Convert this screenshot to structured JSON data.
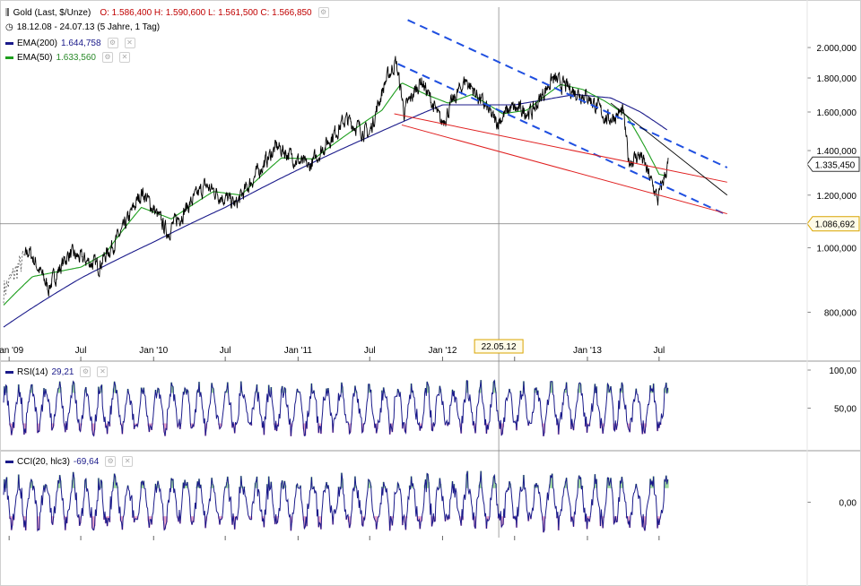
{
  "header": {
    "symbol": "Gold (Last, $/Unze)",
    "ohlc": "O: 1.586,400  H: 1.590,600  L: 1.561,500  C: 1.566,850",
    "range": "18.12.08 - 24.07.13 (5 Jahre, 1 Tag)",
    "ema200_label": "EMA(200)",
    "ema200_value": "1.644,758",
    "ema50_label": "EMA(50)",
    "ema50_value": "1.633,560"
  },
  "colors": {
    "price": "#000000",
    "ema200": "#1a1a8a",
    "ema50": "#1e9e1e",
    "channel": "#1f4fe0",
    "support": "#e02020",
    "trend": "#000000",
    "grid": "#b0b0b0",
    "rsi": "#1a1a8a",
    "overbought": "#9fd99f",
    "oversold": "#e7a0c8"
  },
  "chart_data": [
    {
      "type": "line",
      "name": "price",
      "scale": "log",
      "ylim": [
        730,
        2300
      ],
      "yticks": [
        "2.000,000",
        "1.800,000",
        "1.600,000",
        "1.400,000",
        "1.200,000",
        "1.000,000",
        "800,000"
      ],
      "ytick_values": [
        2000,
        1800,
        1600,
        1400,
        1200,
        1000,
        800
      ],
      "xticks": [
        "Jan '09",
        "Jul",
        "Jan '10",
        "Jul",
        "Jan '11",
        "Jul",
        "Jan '12",
        "Jul",
        "Jan '13",
        "Jul"
      ],
      "xtick_dates": [
        "2009-01-01",
        "2009-07-01",
        "2010-01-01",
        "2010-07-01",
        "2011-01-01",
        "2011-07-01",
        "2012-01-01",
        "2012-07-01",
        "2013-01-01",
        "2013-07-01"
      ],
      "xlim": [
        "2008-12-18",
        "2013-07-24"
      ],
      "price_series": [
        [
          "2008-12-18",
          860
        ],
        [
          "2009-02-20",
          990
        ],
        [
          "2009-04-10",
          870
        ],
        [
          "2009-06-01",
          980
        ],
        [
          "2009-08-15",
          940
        ],
        [
          "2009-10-15",
          1060
        ],
        [
          "2009-12-03",
          1215
        ],
        [
          "2010-02-05",
          1055
        ],
        [
          "2010-05-12",
          1240
        ],
        [
          "2010-07-28",
          1160
        ],
        [
          "2010-11-08",
          1420
        ],
        [
          "2011-01-28",
          1320
        ],
        [
          "2011-05-01",
          1560
        ],
        [
          "2011-06-30",
          1480
        ],
        [
          "2011-08-10",
          1780
        ],
        [
          "2011-09-05",
          1905
        ],
        [
          "2011-09-26",
          1600
        ],
        [
          "2011-11-08",
          1790
        ],
        [
          "2011-12-29",
          1535
        ],
        [
          "2012-02-28",
          1790
        ],
        [
          "2012-05-16",
          1540
        ],
        [
          "2012-06-20",
          1620
        ],
        [
          "2012-08-15",
          1600
        ],
        [
          "2012-10-04",
          1795
        ],
        [
          "2012-11-20",
          1730
        ],
        [
          "2013-01-02",
          1690
        ],
        [
          "2013-02-20",
          1560
        ],
        [
          "2013-04-01",
          1600
        ],
        [
          "2013-04-15",
          1350
        ],
        [
          "2013-05-15",
          1380
        ],
        [
          "2013-06-28",
          1180
        ],
        [
          "2013-07-24",
          1335
        ]
      ],
      "ema200_series": [
        [
          "2008-12-18",
          760
        ],
        [
          "2009-07-01",
          900
        ],
        [
          "2010-01-01",
          1020
        ],
        [
          "2010-07-01",
          1150
        ],
        [
          "2011-01-01",
          1310
        ],
        [
          "2011-07-01",
          1470
        ],
        [
          "2011-09-15",
          1540
        ],
        [
          "2012-01-01",
          1640
        ],
        [
          "2012-07-01",
          1640
        ],
        [
          "2012-12-01",
          1700
        ],
        [
          "2013-03-01",
          1680
        ],
        [
          "2013-05-15",
          1600
        ],
        [
          "2013-07-24",
          1500
        ]
      ],
      "ema50_series": [
        [
          "2008-12-18",
          820
        ],
        [
          "2009-03-01",
          905
        ],
        [
          "2009-05-01",
          920
        ],
        [
          "2009-07-01",
          935
        ],
        [
          "2009-09-01",
          980
        ],
        [
          "2009-12-01",
          1150
        ],
        [
          "2010-02-15",
          1105
        ],
        [
          "2010-06-01",
          1215
        ],
        [
          "2010-08-10",
          1200
        ],
        [
          "2010-11-20",
          1365
        ],
        [
          "2011-02-10",
          1360
        ],
        [
          "2011-06-01",
          1520
        ],
        [
          "2011-08-01",
          1610
        ],
        [
          "2011-09-20",
          1770
        ],
        [
          "2011-11-20",
          1700
        ],
        [
          "2012-01-15",
          1650
        ],
        [
          "2012-03-15",
          1700
        ],
        [
          "2012-06-01",
          1590
        ],
        [
          "2012-08-01",
          1610
        ],
        [
          "2012-10-25",
          1760
        ],
        [
          "2012-12-20",
          1730
        ],
        [
          "2013-02-15",
          1660
        ],
        [
          "2013-04-10",
          1580
        ],
        [
          "2013-05-20",
          1440
        ],
        [
          "2013-07-01",
          1290
        ],
        [
          "2013-07-24",
          1280
        ]
      ],
      "price_label": "1.335,450",
      "hline_label": "1.086,692",
      "hline_value": 1086.692,
      "crosshair_date": "22.05.12",
      "crosshair_iso": "2012-05-22"
    },
    {
      "type": "line",
      "name": "RSI",
      "label": "RSI(14)",
      "value": "29,21",
      "ylim": [
        0,
        100
      ],
      "yticks": [
        "100,00",
        "50,00"
      ],
      "ytick_values": [
        100,
        50
      ]
    },
    {
      "type": "line",
      "name": "CCI",
      "label": "CCI(20, hlc3)",
      "value": "-69,64",
      "ylim": [
        -300,
        300
      ],
      "yticks": [
        "0,00"
      ],
      "ytick_values": [
        0
      ]
    }
  ]
}
